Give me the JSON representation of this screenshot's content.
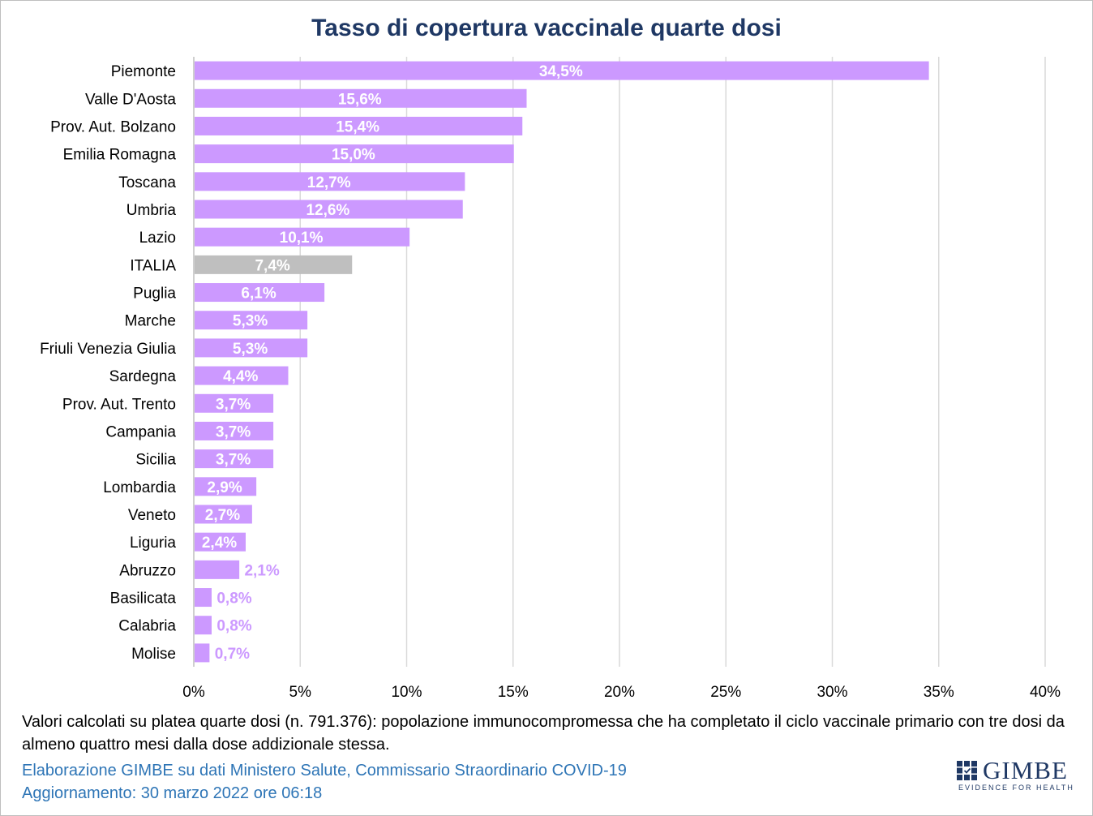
{
  "chart_data": {
    "type": "bar",
    "orientation": "horizontal",
    "title": "Tasso di copertura vaccinale quarte dosi",
    "categories": [
      "Piemonte",
      "Valle D'Aosta",
      "Prov. Aut. Bolzano",
      "Emilia Romagna",
      "Toscana",
      "Umbria",
      "Lazio",
      "ITALIA",
      "Puglia",
      "Marche",
      "Friuli Venezia Giulia",
      "Sardegna",
      "Prov. Aut. Trento",
      "Campania",
      "Sicilia",
      "Lombardia",
      "Veneto",
      "Liguria",
      "Abruzzo",
      "Basilicata",
      "Calabria",
      "Molise"
    ],
    "values": [
      34.5,
      15.6,
      15.4,
      15.0,
      12.7,
      12.6,
      10.1,
      7.4,
      6.1,
      5.3,
      5.3,
      4.4,
      3.7,
      3.7,
      3.7,
      2.9,
      2.7,
      2.4,
      2.1,
      0.8,
      0.8,
      0.7
    ],
    "data_labels": [
      "34,5%",
      "15,6%",
      "15,4%",
      "15,0%",
      "12,7%",
      "12,6%",
      "10,1%",
      "7,4%",
      "6,1%",
      "5,3%",
      "5,3%",
      "4,4%",
      "3,7%",
      "3,7%",
      "3,7%",
      "2,9%",
      "2,7%",
      "2,4%",
      "2,1%",
      "0,8%",
      "0,8%",
      "0,7%"
    ],
    "highlight_category": "ITALIA",
    "xlim": [
      0,
      40
    ],
    "x_ticks": [
      0,
      5,
      10,
      15,
      20,
      25,
      30,
      35,
      40
    ],
    "x_tick_labels": [
      "0%",
      "5%",
      "10%",
      "15%",
      "20%",
      "25%",
      "30%",
      "35%",
      "40%"
    ],
    "grid": "vertical",
    "colors": {
      "bar": "#cc99ff",
      "highlight": "#bfbfbf",
      "label_inside": "#ffffff",
      "label_outside": "#cc99ff",
      "grid": "#d9d9d9"
    }
  },
  "footer": {
    "note": "Valori calcolati su platea quarte dosi (n. 791.376): popolazione immunocompromessa che ha completato il ciclo vaccinale primario con tre dosi da almeno quattro mesi dalla dose addizionale stessa.",
    "credit": "Elaborazione GIMBE su dati Ministero Salute, Commissario Straordinario COVID-19",
    "updated": "Aggiornamento: 30 marzo 2022 ore 06:18"
  },
  "logo": {
    "word": "GIMBE",
    "tagline": "EVIDENCE FOR HEALTH"
  }
}
